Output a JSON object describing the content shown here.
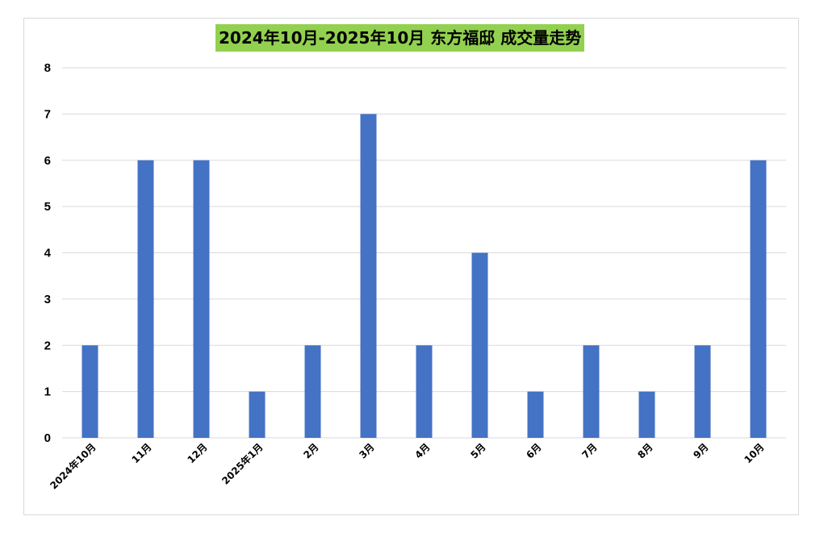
{
  "chart_data": {
    "type": "bar",
    "title": "2024年10月-2025年10月 东方福邸 成交量走势",
    "categories": [
      "2024年10月",
      "11月",
      "12月",
      "2025年1月",
      "2月",
      "3月",
      "4月",
      "5月",
      "6月",
      "7月",
      "8月",
      "9月",
      "10月"
    ],
    "values": [
      2,
      6,
      6,
      1,
      2,
      7,
      2,
      4,
      1,
      2,
      1,
      2,
      6
    ],
    "ylim": [
      0,
      8
    ],
    "yticks": [
      "0",
      "1",
      "2",
      "3",
      "4",
      "5",
      "6",
      "7",
      "8"
    ],
    "grid": true,
    "legend": "none",
    "xlabel": "",
    "ylabel": ""
  },
  "colors": {
    "bar": "#4472c4",
    "title_background": "#92d050",
    "gridline": "#d9d9d9",
    "frame_border": "#d9d9d9"
  }
}
